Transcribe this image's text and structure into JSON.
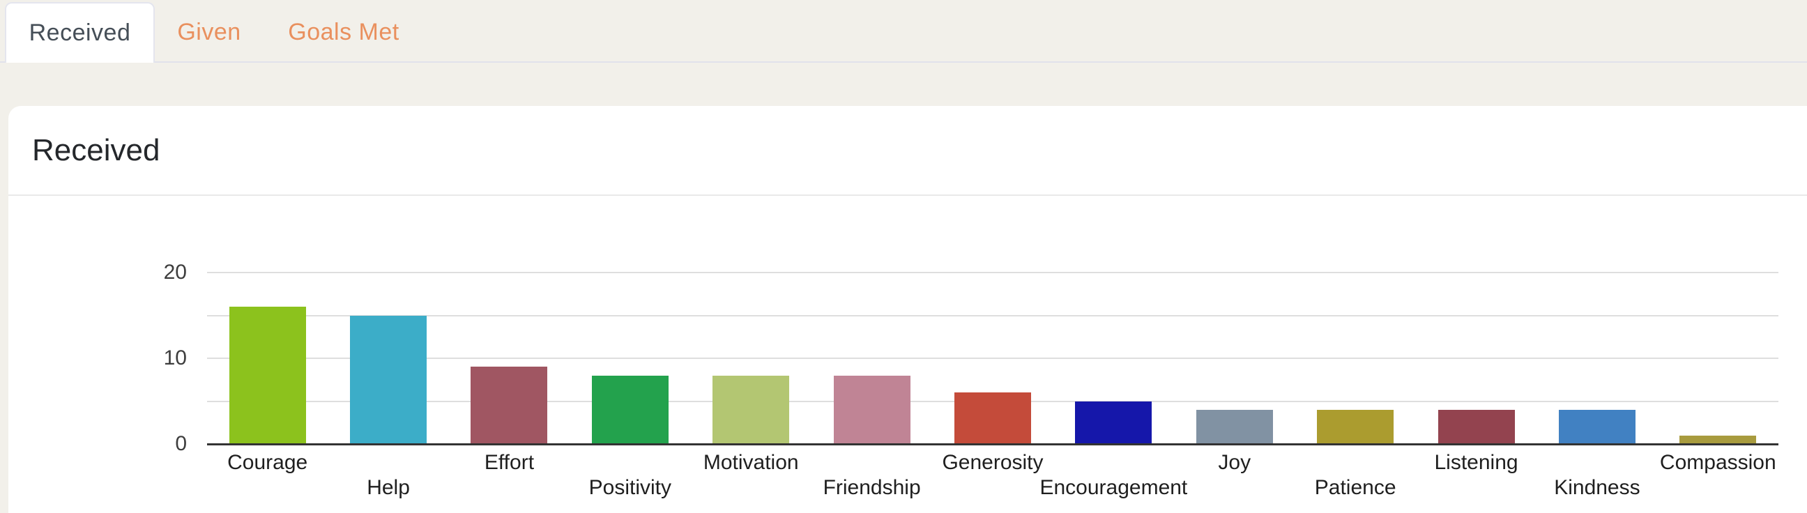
{
  "tab_bar": {
    "tabs": [
      {
        "label": "Received",
        "active": true
      },
      {
        "label": "Given",
        "active": false
      },
      {
        "label": "Goals Met",
        "active": false
      }
    ]
  },
  "panel": {
    "title": "Received"
  },
  "chart_data": {
    "type": "bar",
    "title": "Received",
    "categories": [
      "Courage",
      "Help",
      "Effort",
      "Positivity",
      "Motivation",
      "Friendship",
      "Generosity",
      "Encouragement",
      "Joy",
      "Patience",
      "Listening",
      "Kindness",
      "Compassion"
    ],
    "values": [
      16,
      15,
      9,
      8,
      8,
      8,
      6,
      5,
      4,
      4,
      4,
      4,
      1
    ],
    "bar_colors": [
      "#8cc21d",
      "#3cadc8",
      "#a05662",
      "#23a24d",
      "#b3c672",
      "#c08495",
      "#c44b3a",
      "#1517aa",
      "#8192a3",
      "#ab9c2f",
      "#93434f",
      "#4181c2",
      "#a89b3e"
    ],
    "xlabel": "",
    "ylabel": "",
    "ylim": [
      0,
      20
    ],
    "ytick_labels": [
      0,
      10,
      20
    ],
    "gridline_values": [
      5,
      10,
      15,
      20
    ],
    "grid": true,
    "legend_position": "none",
    "label_stagger": true
  },
  "colors": {
    "page_background": "#f2f0ea",
    "panel_background": "#ffffff",
    "active_tab_text": "#454e57",
    "inactive_tab_text": "#e9905e",
    "axis_line": "#333333",
    "gridline": "#dedede",
    "tick_label_text": "#3d3d3d",
    "category_label_text": "#1f1f1f"
  }
}
